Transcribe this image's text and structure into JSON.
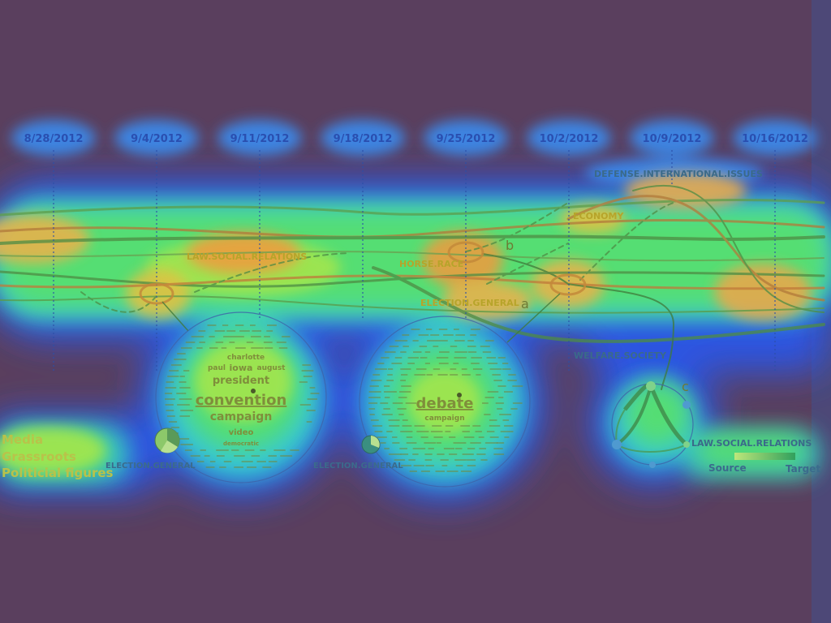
{
  "timeline": {
    "dates": [
      "8/28/2012",
      "9/4/2012",
      "9/11/2012",
      "9/18/2012",
      "9/25/2012",
      "10/2/2012",
      "10/9/2012",
      "10/16/2012"
    ]
  },
  "topics": {
    "defense": "DEFENSE.INTERNATIONAL.ISSUES",
    "economy": "ECONOMY",
    "law": "LAW.SOCIAL.RELATIONS",
    "horse_race": "HORSE.RACE",
    "election": "ELECTION.GENERAL",
    "welfare": "WELFARE.SOCIETY"
  },
  "markers": {
    "a": "a",
    "b": "b",
    "c": "c"
  },
  "cloud_left": {
    "words": [
      "charlotte",
      "iowa",
      "paul",
      "august",
      "president",
      "convention",
      "campaign",
      "video",
      "democratic"
    ],
    "label": "ELECTION.GENERAL"
  },
  "cloud_middle": {
    "words": [
      "debate",
      "campaign"
    ],
    "label": "ELECTION.GENERAL"
  },
  "flow_glyph": {
    "label": "LAW.SOCIAL.RELATIONS",
    "source": "Source",
    "target": "Target"
  },
  "legend": {
    "items": [
      "Media",
      "Grassroots",
      "Politicial figures"
    ]
  },
  "colors": {
    "background": "#5a3f5e",
    "heat_low": "#2a57e8",
    "heat_mid": "#46e07a",
    "heat_high": "#ff9a3c",
    "date_text": "#2a4fb0"
  }
}
